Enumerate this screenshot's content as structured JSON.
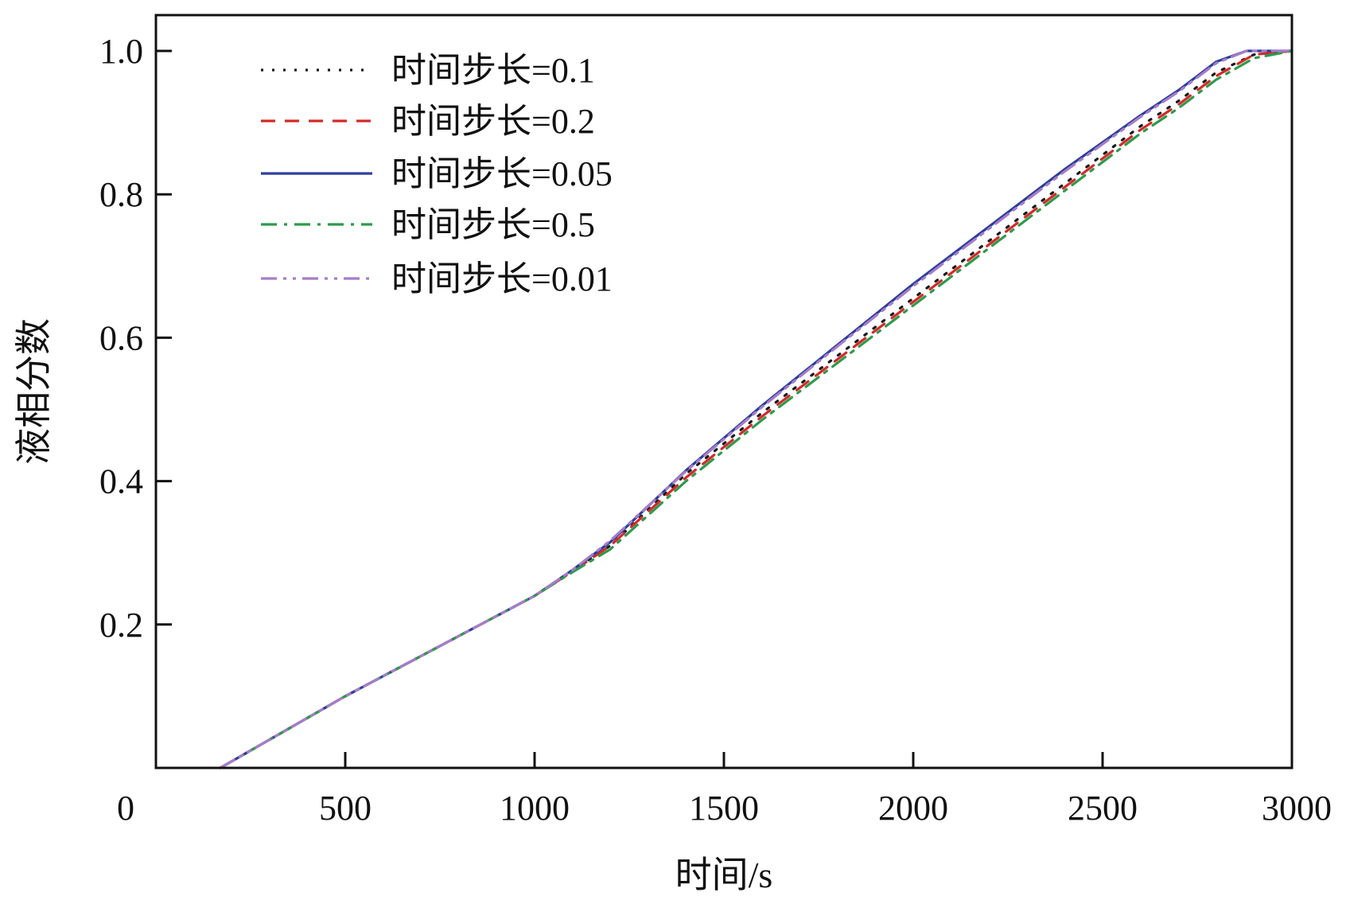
{
  "chart_data": {
    "type": "line",
    "title": "",
    "xlabel": "时间/s",
    "ylabel": "液相分数",
    "xlim": [
      0,
      3000
    ],
    "ylim": [
      0,
      1.05
    ],
    "xticks": [
      0,
      500,
      1000,
      1500,
      2000,
      2500,
      3000
    ],
    "xtick_labels": [
      "0",
      "500",
      "1000",
      "1500",
      "2000",
      "2500",
      "3000"
    ],
    "yticks": [
      0.2,
      0.4,
      0.6,
      0.8,
      1.0
    ],
    "ytick_labels": [
      "0.2",
      "0.4",
      "0.6",
      "0.8",
      "1.0"
    ],
    "grid": false,
    "legend_position": "top-left",
    "series": [
      {
        "name": "时间步长=0.1",
        "color": "#1a1a1a",
        "dash": "dotted",
        "x": [
          170,
          500,
          1000,
          1100,
          1200,
          1400,
          1600,
          1800,
          2000,
          2200,
          2400,
          2600,
          2700,
          2800,
          2900,
          3000
        ],
        "y": [
          0,
          0.1,
          0.24,
          0.275,
          0.31,
          0.41,
          0.495,
          0.575,
          0.655,
          0.735,
          0.815,
          0.895,
          0.93,
          0.97,
          0.995,
          1.0
        ]
      },
      {
        "name": "时间步长=0.2",
        "color": "#d42a2a",
        "dash": "dashed",
        "x": [
          170,
          500,
          1000,
          1100,
          1200,
          1400,
          1600,
          1800,
          2000,
          2200,
          2400,
          2600,
          2700,
          2800,
          2900,
          3000
        ],
        "y": [
          0,
          0.1,
          0.24,
          0.274,
          0.31,
          0.405,
          0.49,
          0.57,
          0.65,
          0.73,
          0.81,
          0.89,
          0.925,
          0.965,
          0.995,
          1.0
        ]
      },
      {
        "name": "时间步长=0.05",
        "color": "#2c3e9e",
        "dash": "solid",
        "x": [
          170,
          500,
          1000,
          1100,
          1200,
          1400,
          1600,
          1800,
          2000,
          2200,
          2400,
          2600,
          2700,
          2800,
          2880,
          3000
        ],
        "y": [
          0,
          0.1,
          0.24,
          0.276,
          0.315,
          0.415,
          0.505,
          0.59,
          0.675,
          0.755,
          0.835,
          0.91,
          0.945,
          0.985,
          1.0,
          1.0
        ]
      },
      {
        "name": "时间步长=0.5",
        "color": "#2e9a4a",
        "dash": "dashdot",
        "x": [
          170,
          500,
          1000,
          1100,
          1200,
          1400,
          1600,
          1800,
          2000,
          2200,
          2400,
          2600,
          2700,
          2800,
          2900,
          3000
        ],
        "y": [
          0,
          0.1,
          0.24,
          0.273,
          0.305,
          0.4,
          0.485,
          0.565,
          0.645,
          0.725,
          0.805,
          0.885,
          0.92,
          0.96,
          0.99,
          1.0
        ]
      },
      {
        "name": "时间步长=0.01",
        "color": "#a77cc8",
        "dash": "dashdotdot",
        "x": [
          170,
          500,
          1000,
          1100,
          1200,
          1400,
          1600,
          1800,
          2000,
          2200,
          2400,
          2600,
          2700,
          2800,
          2880,
          3000
        ],
        "y": [
          0,
          0.1,
          0.24,
          0.276,
          0.317,
          0.414,
          0.503,
          0.588,
          0.672,
          0.752,
          0.832,
          0.908,
          0.943,
          0.983,
          1.0,
          1.0
        ]
      }
    ]
  }
}
